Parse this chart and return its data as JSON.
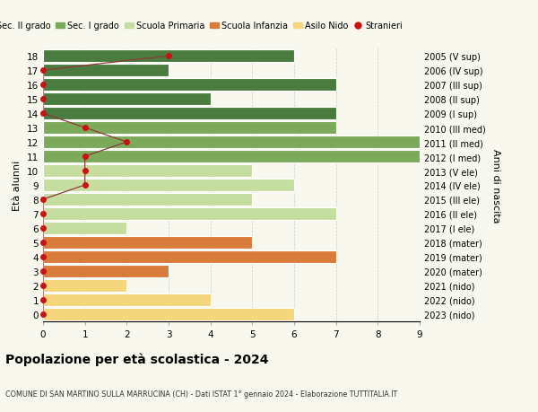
{
  "ages": [
    18,
    17,
    16,
    15,
    14,
    13,
    12,
    11,
    10,
    9,
    8,
    7,
    6,
    5,
    4,
    3,
    2,
    1,
    0
  ],
  "right_labels": [
    "2005 (V sup)",
    "2006 (IV sup)",
    "2007 (III sup)",
    "2008 (II sup)",
    "2009 (I sup)",
    "2010 (III med)",
    "2011 (II med)",
    "2012 (I med)",
    "2013 (V ele)",
    "2014 (IV ele)",
    "2015 (III ele)",
    "2016 (II ele)",
    "2017 (I ele)",
    "2018 (mater)",
    "2019 (mater)",
    "2020 (mater)",
    "2021 (nido)",
    "2022 (nido)",
    "2023 (nido)"
  ],
  "bar_values": [
    6,
    3,
    7,
    4,
    7,
    7,
    9,
    9,
    5,
    6,
    5,
    7,
    2,
    5,
    7,
    3,
    2,
    4,
    6
  ],
  "bar_colors": [
    "#4a7c3f",
    "#4a7c3f",
    "#4a7c3f",
    "#4a7c3f",
    "#4a7c3f",
    "#7aaa5a",
    "#7aaa5a",
    "#7aaa5a",
    "#c5dea0",
    "#c5dea0",
    "#c5dea0",
    "#c5dea0",
    "#c5dea0",
    "#d97b3a",
    "#d97b3a",
    "#d97b3a",
    "#f5d67a",
    "#f5d67a",
    "#f5d67a"
  ],
  "stranieri_x": [
    3,
    0,
    0,
    0,
    0,
    1,
    2,
    1,
    1,
    1,
    0,
    0,
    0,
    0,
    0,
    0,
    0,
    0,
    0
  ],
  "stranieri_line_color": "#8b3a3a",
  "stranieri_dot_color": "#cc1111",
  "background_color": "#f8f8ee",
  "grid_color": "#cccccc",
  "bar_edge_color": "white",
  "legend_colors": {
    "Sec. II grado": "#4a7c3f",
    "Sec. I grado": "#7aaa5a",
    "Scuola Primaria": "#c5dea0",
    "Scuola Infanzia": "#d97b3a",
    "Asilo Nido": "#f5d67a",
    "Stranieri": "#cc1111"
  },
  "title": "Popolazione per età scolastica - 2024",
  "subtitle": "COMUNE DI SAN MARTINO SULLA MARRUCINA (CH) - Dati ISTAT 1° gennaio 2024 - Elaborazione TUTTITALIA.IT",
  "ylabel_left": "Età alunni",
  "ylabel_right": "Anni di nascita",
  "xlim": [
    0,
    9
  ],
  "xticks": [
    0,
    1,
    2,
    3,
    4,
    5,
    6,
    7,
    8,
    9
  ]
}
